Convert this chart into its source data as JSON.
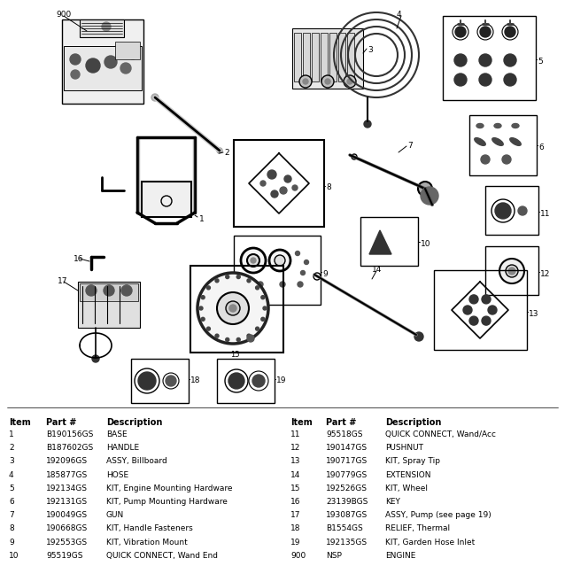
{
  "bg_color": "#ffffff",
  "fig_width": 6.38,
  "fig_height": 6.39,
  "dpi": 100,
  "table_left": [
    [
      "1",
      "B190156GS",
      "BASE"
    ],
    [
      "2",
      "B187602GS",
      "HANDLE"
    ],
    [
      "3",
      "192096GS",
      "ASSY, Billboard"
    ],
    [
      "4",
      "185877GS",
      "HOSE"
    ],
    [
      "5",
      "192134GS",
      "KIT, Engine Mounting Hardware"
    ],
    [
      "6",
      "192131GS",
      "KIT, Pump Mounting Hardware"
    ],
    [
      "7",
      "190049GS",
      "GUN"
    ],
    [
      "8",
      "190668GS",
      "KIT, Handle Fasteners"
    ],
    [
      "9",
      "192553GS",
      "KIT, Vibration Mount"
    ],
    [
      "10",
      "95519GS",
      "QUICK CONNECT, Wand End"
    ]
  ],
  "table_right": [
    [
      "11",
      "95518GS",
      "QUICK CONNECT, Wand/Acc"
    ],
    [
      "12",
      "190147GS",
      "PUSHNUT"
    ],
    [
      "13",
      "190717GS",
      "KIT, Spray Tip"
    ],
    [
      "14",
      "190779GS",
      "EXTENSION"
    ],
    [
      "15",
      "192526GS",
      "KIT, Wheel"
    ],
    [
      "16",
      "23139BGS",
      "KEY"
    ],
    [
      "17",
      "193087GS",
      "ASSY, Pump (see page 19)"
    ],
    [
      "18",
      "B1554GS",
      "RELIEF, Thermal"
    ],
    [
      "19",
      "192135GS",
      "KIT, Garden Hose Inlet"
    ],
    [
      "900",
      "NSP",
      "ENGINE"
    ]
  ]
}
